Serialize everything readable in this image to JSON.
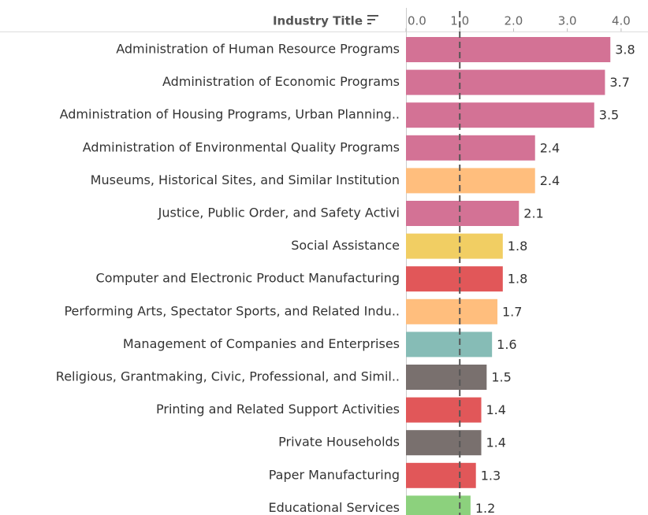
{
  "chart_data": {
    "type": "bar",
    "orientation": "horizontal",
    "axis_title": "Industry Title",
    "categories": [
      "Administration of Human Resource Programs",
      "Administration of Economic Programs",
      "Administration of Housing Programs, Urban Planning..",
      "Administration of Environmental Quality Programs",
      "Museums, Historical Sites, and Similar Institution",
      "Justice, Public Order, and Safety Activi",
      "Social Assistance",
      "Computer and Electronic Product Manufacturing",
      "Performing Arts, Spectator Sports, and Related Indu..",
      "Management of Companies and Enterprises",
      "Religious, Grantmaking, Civic, Professional, and Simil..",
      "Printing and Related Support Activities",
      "Private Households",
      "Paper Manufacturing",
      "Educational Services"
    ],
    "values": [
      3.8,
      3.7,
      3.5,
      2.4,
      2.4,
      2.1,
      1.8,
      1.8,
      1.7,
      1.6,
      1.5,
      1.4,
      1.4,
      1.3,
      1.2
    ],
    "colors": [
      "#d37295",
      "#d37295",
      "#d37295",
      "#d37295",
      "#ffbe7d",
      "#d37295",
      "#f1ce63",
      "#e15759",
      "#ffbe7d",
      "#86bcb6",
      "#79706e",
      "#e15759",
      "#79706e",
      "#e15759",
      "#8cd17d"
    ],
    "xlim": [
      0,
      4.5
    ],
    "xticks": [
      {
        "value": 0,
        "label": "0.0"
      },
      {
        "value": 1,
        "label": "1.0"
      },
      {
        "value": 2,
        "label": "2.0"
      },
      {
        "value": 3,
        "label": "3.0"
      },
      {
        "value": 4,
        "label": "4.0"
      }
    ],
    "reference_line": 1
  }
}
